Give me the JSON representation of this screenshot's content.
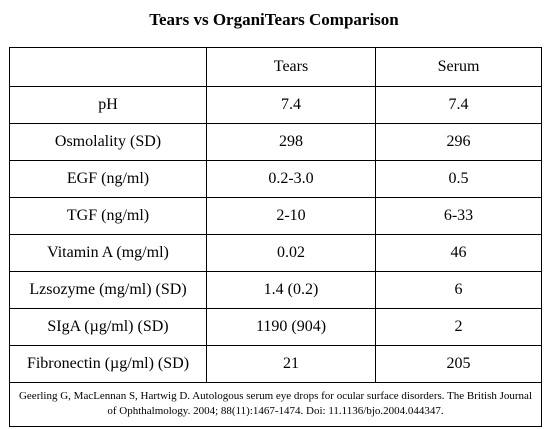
{
  "title": "Tears vs OrganiTears Comparison",
  "table": {
    "headers": [
      "",
      "Tears",
      "Serum"
    ],
    "rows": [
      {
        "label": "pH",
        "tears": "7.4",
        "serum": "7.4"
      },
      {
        "label": "Osmolality (SD)",
        "tears": "298",
        "serum": "296"
      },
      {
        "label": "EGF (ng/ml)",
        "tears": "0.2-3.0",
        "serum": "0.5"
      },
      {
        "label": "TGF (ng/ml)",
        "tears": "2-10",
        "serum": "6-33"
      },
      {
        "label": "Vitamin A (mg/ml)",
        "tears": "0.02",
        "serum": "46"
      },
      {
        "label": "Lzsozyme (mg/ml) (SD)",
        "tears": "1.4 (0.2)",
        "serum": "6"
      },
      {
        "label": "SIgA (µg/ml) (SD)",
        "tears": "1190 (904)",
        "serum": "2"
      },
      {
        "label": "Fibronectin (µg/ml) (SD)",
        "tears": "21",
        "serum": "205"
      }
    ],
    "citation": "Geerling G, MacLennan S, Hartwig D. Autologous serum eye drops for ocular surface disorders. The British Journal of Ophthalmology. 2004; 88(11):1467-1474. Doi: 11.1136/bjo.2004.044347."
  }
}
